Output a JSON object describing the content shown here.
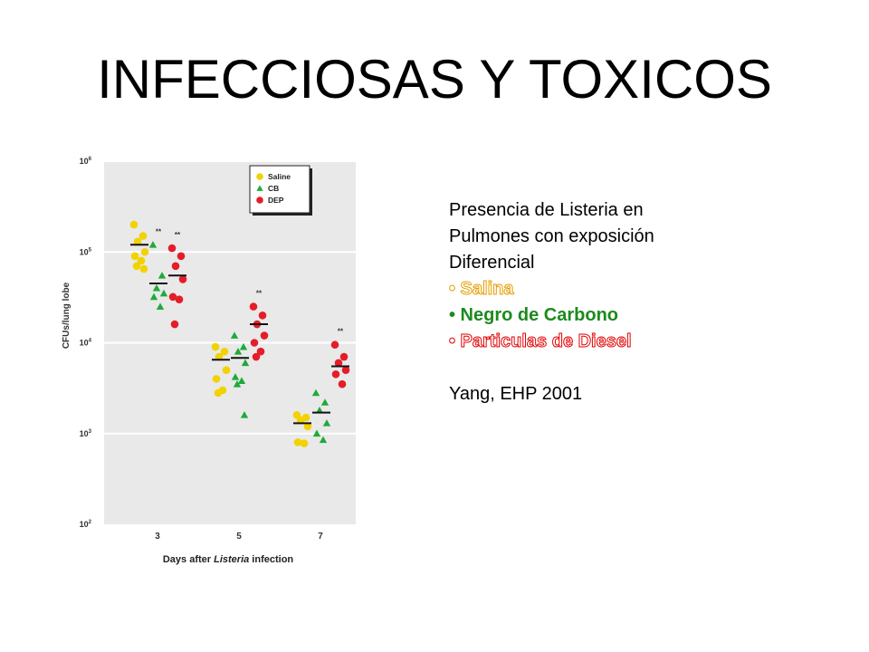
{
  "slide": {
    "title": "INFECCIOSAS Y TOXICOS"
  },
  "notes": {
    "intro_lines": [
      "Presencia de Listeria en",
      "Pulmones con exposición",
      "Diferencial"
    ],
    "bullets": [
      {
        "text": "• Salina",
        "color": "#e69d00",
        "style": "outline"
      },
      {
        "text": "• Negro de Carbono",
        "color": "#1d8a1d",
        "style": "bold"
      },
      {
        "text": "• Particulas de Diesel",
        "color": "#e00000",
        "style": "outline"
      }
    ],
    "citation": "Yang, EHP 2001"
  },
  "chart_data": {
    "type": "scatter",
    "title": "",
    "xlabel_parts": [
      "Days after ",
      "Listeria",
      " infection"
    ],
    "ylabel": "CFUs/lung lobe",
    "y_scale": "log",
    "ylim": [
      100,
      1000000
    ],
    "y_ticks": [
      {
        "value": 1000000,
        "base": "10",
        "exp": "6"
      },
      {
        "value": 100000,
        "base": "10",
        "exp": "5"
      },
      {
        "value": 10000,
        "base": "10",
        "exp": "4"
      },
      {
        "value": 1000,
        "base": "10",
        "exp": "3"
      },
      {
        "value": 100,
        "base": "10",
        "exp": "2"
      }
    ],
    "categories": [
      "3",
      "5",
      "7"
    ],
    "grid": true,
    "legend_position": "top-right",
    "series": [
      {
        "name": "Saline",
        "color": "#f2d200",
        "marker": "circle",
        "groups": [
          {
            "day": "3",
            "values": [
              200000,
              150000,
              130000,
              100000,
              90000,
              80000,
              70000,
              65000
            ],
            "mean": 120000,
            "sig": ""
          },
          {
            "day": "5",
            "values": [
              9000,
              8000,
              7000,
              5000,
              4000,
              3000,
              2800
            ],
            "mean": 6500,
            "sig": ""
          },
          {
            "day": "7",
            "values": [
              1600,
              1500,
              1400,
              1200,
              800,
              780
            ],
            "mean": 1300,
            "sig": ""
          }
        ]
      },
      {
        "name": "CB",
        "color": "#1faa3a",
        "marker": "triangle",
        "groups": [
          {
            "day": "3",
            "values": [
              120000,
              55000,
              40000,
              35000,
              32000,
              25000
            ],
            "mean": 45000,
            "sig": "**"
          },
          {
            "day": "5",
            "values": [
              12000,
              9000,
              8000,
              6000,
              4200,
              3800,
              3500,
              1600
            ],
            "mean": 6800,
            "sig": ""
          },
          {
            "day": "7",
            "values": [
              2800,
              2200,
              1800,
              1300,
              1000,
              850
            ],
            "mean": 1700,
            "sig": ""
          }
        ]
      },
      {
        "name": "DEP",
        "color": "#e41d2a",
        "marker": "circle",
        "groups": [
          {
            "day": "3",
            "values": [
              110000,
              90000,
              70000,
              50000,
              32000,
              30000,
              16000
            ],
            "mean": 55000,
            "sig": "**"
          },
          {
            "day": "5",
            "values": [
              25000,
              20000,
              16000,
              12000,
              10000,
              8000,
              7000
            ],
            "mean": 16000,
            "sig": "**"
          },
          {
            "day": "7",
            "values": [
              9500,
              7000,
              6000,
              5000,
              4500,
              3500
            ],
            "mean": 5500,
            "sig": "**"
          }
        ]
      }
    ]
  }
}
